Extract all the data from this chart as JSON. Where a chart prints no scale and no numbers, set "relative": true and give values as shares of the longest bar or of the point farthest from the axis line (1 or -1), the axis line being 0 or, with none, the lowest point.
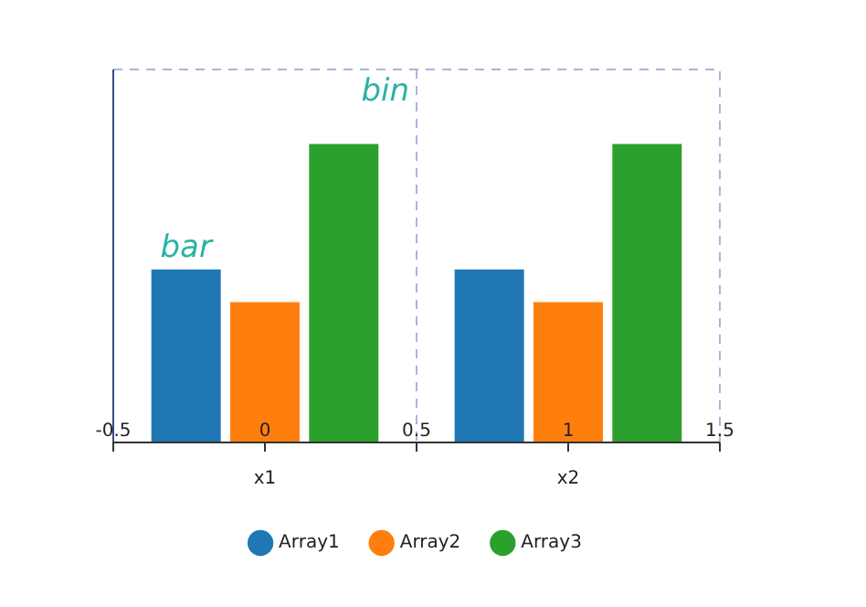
{
  "chart_data": {
    "type": "bar",
    "relative": true,
    "categories": [
      "x1",
      "x2"
    ],
    "series": [
      {
        "name": "Array1",
        "color": "#1f77b4",
        "values": [
          0.58,
          0.58
        ]
      },
      {
        "name": "Array2",
        "color": "#ff7f0e",
        "values": [
          0.47,
          0.47
        ]
      },
      {
        "name": "Array3",
        "color": "#2ca02c",
        "values": [
          1,
          1
        ]
      }
    ],
    "x2lim": [
      -0.5,
      1.5
    ],
    "x2ticks": [
      -0.5,
      0,
      0.5,
      1,
      1.5
    ],
    "ref_lines": [
      {
        "axis": "x2",
        "value": 0.5,
        "line_style": "dashed",
        "color": "#aab4e0"
      }
    ],
    "annotations": [
      "bar",
      "bin"
    ],
    "legend": "bottom"
  }
}
